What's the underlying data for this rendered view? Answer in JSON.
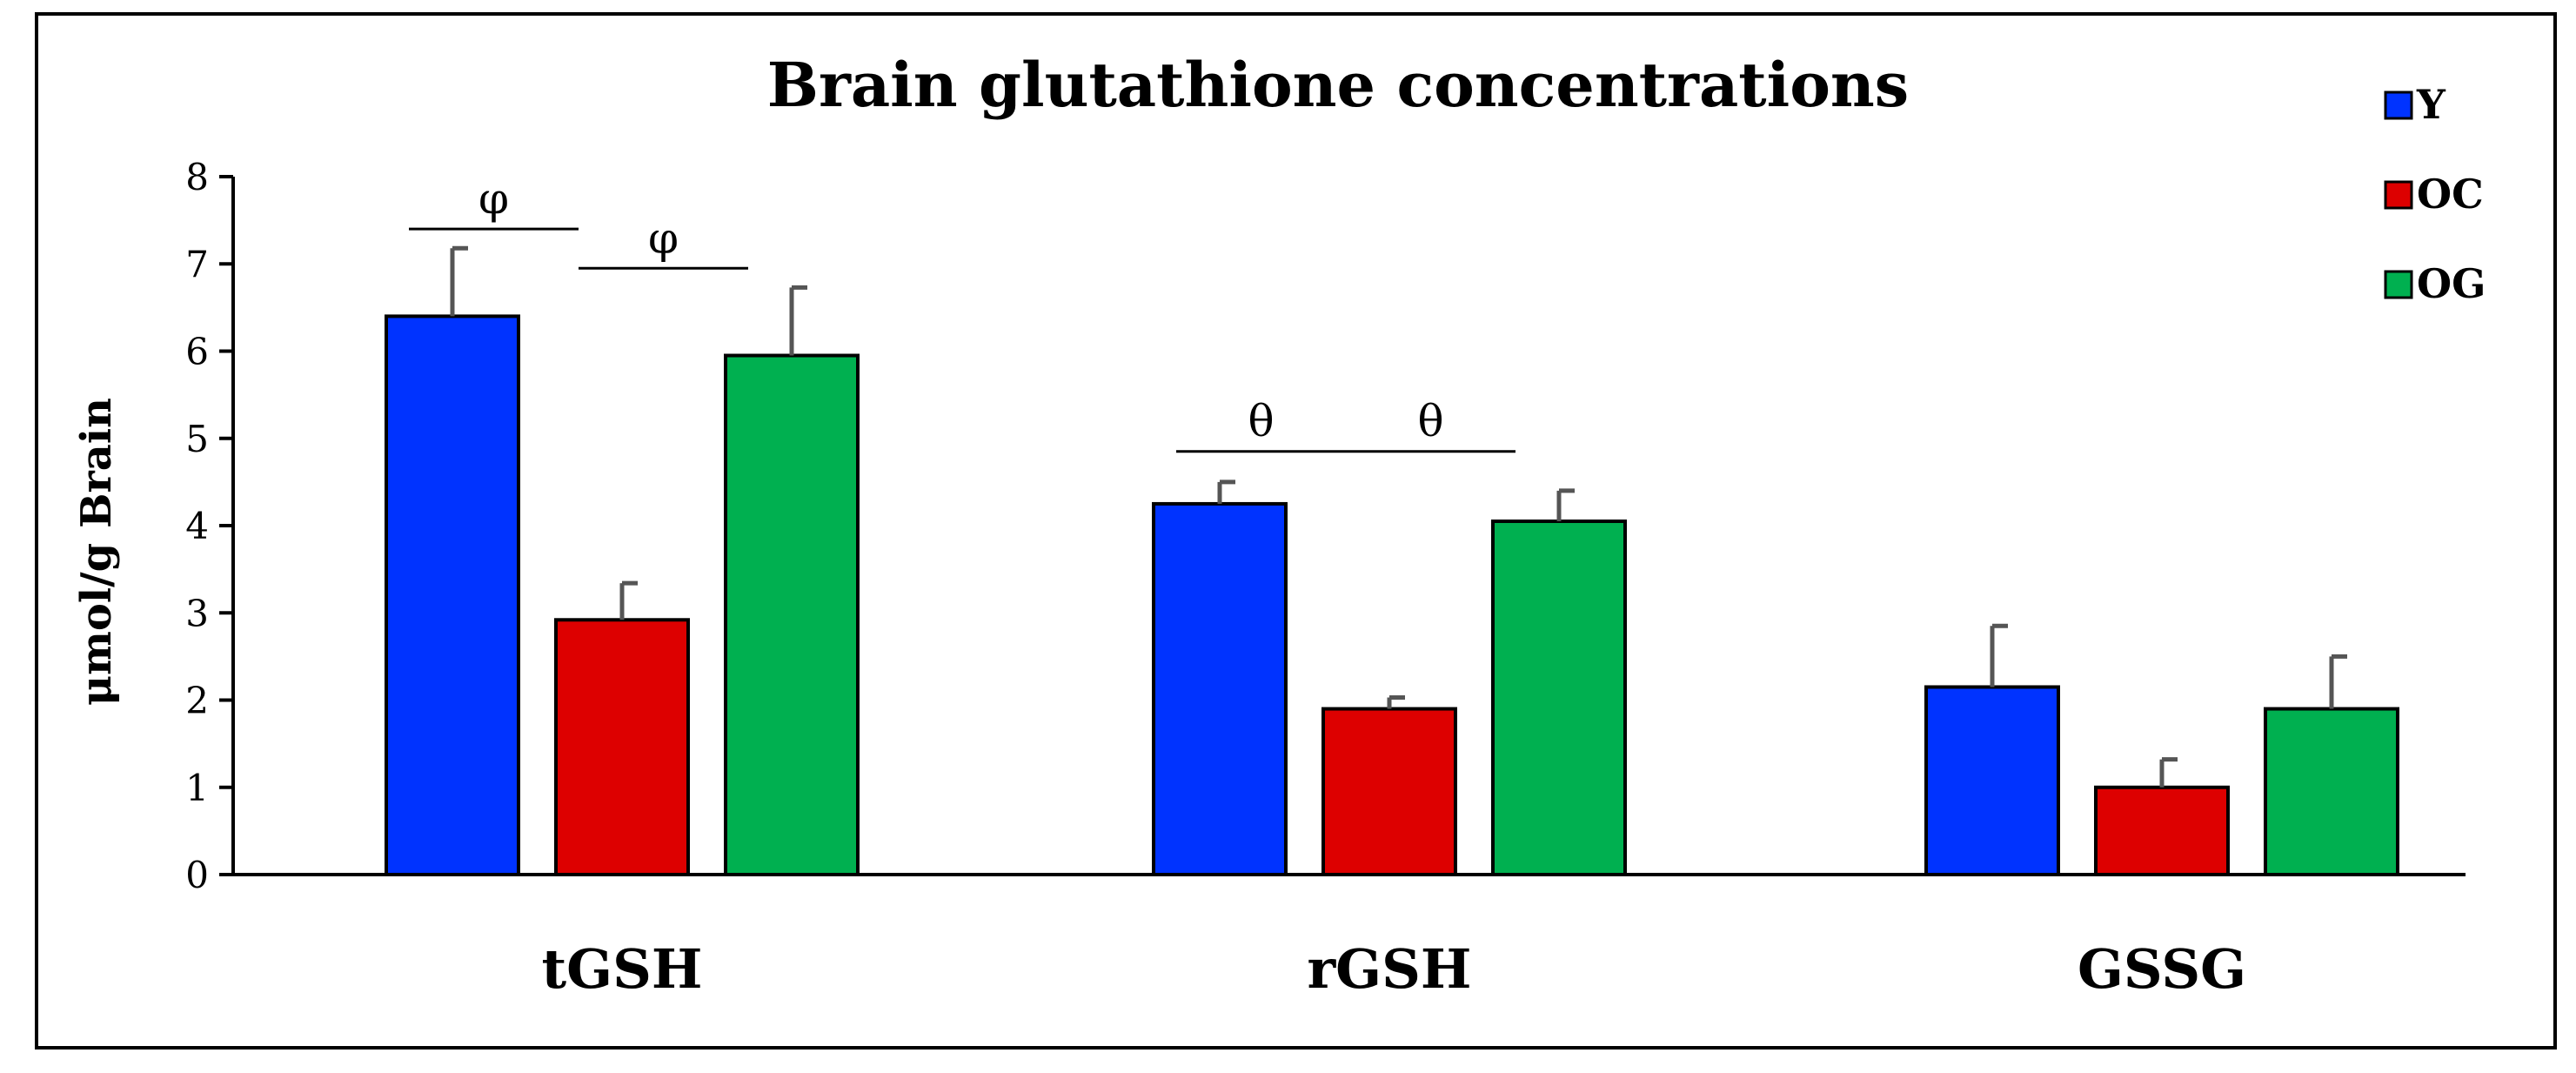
{
  "chart_data": {
    "type": "bar",
    "title": "Brain glutathione concentrations",
    "xlabel": "",
    "ylabel": "μmol/g Brain",
    "ylim": [
      0,
      8
    ],
    "yticks": [
      0,
      1,
      2,
      3,
      4,
      5,
      6,
      7,
      8
    ],
    "categories": [
      "tGSH",
      "rGSH",
      "GSSG"
    ],
    "series": [
      {
        "name": "Y",
        "color": "#0033ff",
        "values": [
          6.4,
          4.25,
          2.15
        ],
        "errors": [
          0.78,
          0.25,
          0.7
        ]
      },
      {
        "name": "OC",
        "color": "#dd0000",
        "values": [
          2.92,
          1.9,
          1.0
        ],
        "errors": [
          0.42,
          0.13,
          0.32
        ]
      },
      {
        "name": "OG",
        "color": "#00b050",
        "values": [
          5.95,
          4.05,
          1.9
        ],
        "errors": [
          0.78,
          0.35,
          0.6
        ]
      }
    ],
    "annotations": [
      {
        "symbol": "φ",
        "category": "tGSH",
        "from": "Y",
        "to": "OC",
        "y": 7.4
      },
      {
        "symbol": "φ",
        "category": "tGSH",
        "from": "OC",
        "to": "OG",
        "y": 6.95
      },
      {
        "symbol": "θ",
        "category": "rGSH",
        "from": "Y",
        "to": "OC",
        "y": 4.85
      },
      {
        "symbol": "θ",
        "category": "rGSH",
        "from": "OC",
        "to": "OG",
        "y": 4.85
      }
    ],
    "legend_position": "top-right",
    "grid": false
  }
}
